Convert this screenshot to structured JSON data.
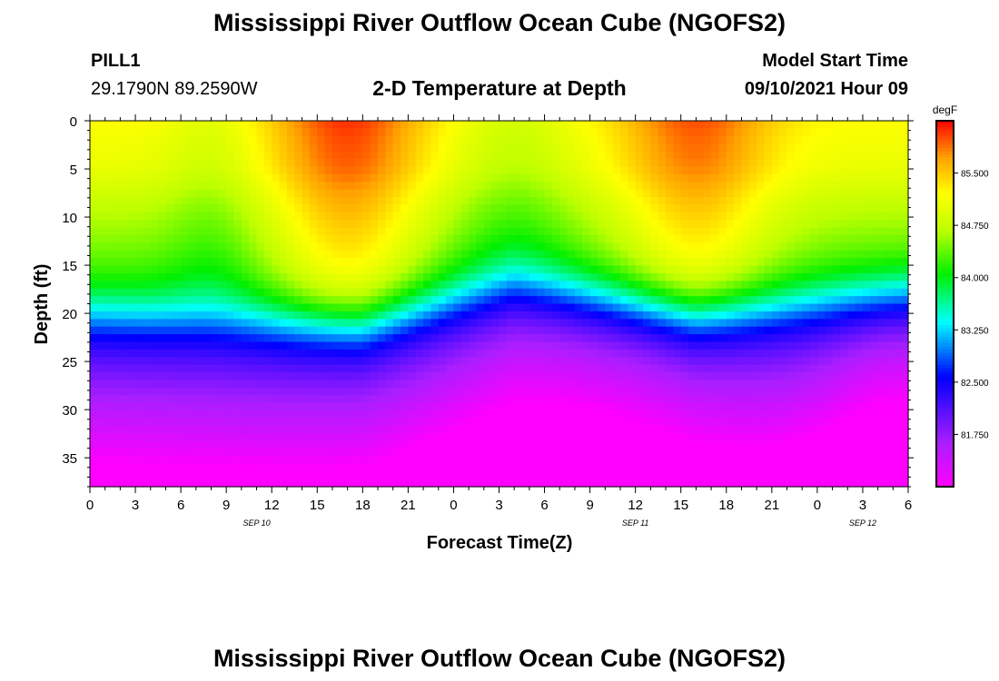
{
  "page_title": "Mississippi River Outflow Ocean Cube (NGOFS2)",
  "footer_title": "Mississippi River Outflow Ocean Cube (NGOFS2)",
  "station": {
    "id": "PILL1",
    "coords": "29.1790N  89.2590W"
  },
  "model": {
    "start_label": "Model Start Time",
    "start_value": "09/10/2021 Hour 09"
  },
  "chart_data": {
    "type": "heatmap",
    "title": "2-D Temperature at Depth",
    "xlabel": "Forecast Time(Z)",
    "ylabel": "Depth (ft)",
    "ylim": [
      0,
      38
    ],
    "y_reversed": true,
    "y_ticks": [
      0,
      5,
      10,
      15,
      20,
      25,
      30,
      35
    ],
    "x_tick_labels": [
      "0",
      "3",
      "6",
      "9",
      "12",
      "15",
      "18",
      "21",
      "0",
      "3",
      "6",
      "9",
      "12",
      "15",
      "18",
      "21",
      "0",
      "3",
      "6"
    ],
    "x_range_hours": [
      0,
      54
    ],
    "date_labels": [
      {
        "text": "SEP 10",
        "hour": 11
      },
      {
        "text": "SEP 11",
        "hour": 36
      },
      {
        "text": "SEP 12",
        "hour": 51
      }
    ],
    "colorbar": {
      "unit": "degF",
      "range": [
        81.0,
        86.25
      ],
      "ticks": [
        "85.500",
        "84.750",
        "84.000",
        "83.250",
        "82.500",
        "81.750"
      ],
      "tick_values": [
        85.5,
        84.75,
        84.0,
        83.25,
        82.5,
        81.75
      ]
    },
    "field_model": {
      "description_free": true,
      "surface_peaks": [
        {
          "hour": 17,
          "value": 86.1
        },
        {
          "hour": 40,
          "value": 86.0
        }
      ],
      "surface_trough": {
        "hour": 28,
        "value": 84.9
      },
      "mixed_layer_base_ft": [
        {
          "hour": 0,
          "depth": 20
        },
        {
          "hour": 18,
          "depth": 21
        },
        {
          "hour": 28,
          "depth": 17
        },
        {
          "hour": 40,
          "depth": 20
        },
        {
          "hour": 54,
          "depth": 18
        }
      ],
      "deep_value_range": [
        81.0,
        82.6
      ]
    }
  }
}
